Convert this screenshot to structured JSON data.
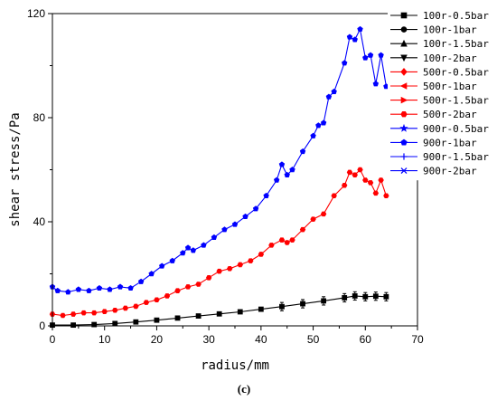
{
  "chart_data": {
    "type": "line",
    "xlabel": "radius/mm",
    "ylabel": "shear stress/Pa",
    "caption": "(c)",
    "xlim": [
      0,
      70
    ],
    "ylim": [
      0,
      120
    ],
    "xticks": [
      0,
      10,
      20,
      30,
      40,
      50,
      60,
      70
    ],
    "yticks": [
      0,
      40,
      80,
      120
    ],
    "legend_placement": "top-right",
    "series": [
      {
        "name": "100r-0.5bar",
        "color": "#000000",
        "marker": "square",
        "group": "g100"
      },
      {
        "name": "100r-1bar",
        "color": "#000000",
        "marker": "circle",
        "group": "g100"
      },
      {
        "name": "100r-1.5bar",
        "color": "#000000",
        "marker": "triangle-up",
        "group": "g100"
      },
      {
        "name": "100r-2bar",
        "color": "#000000",
        "marker": "triangle-down",
        "group": "g100"
      },
      {
        "name": "500r-0.5bar",
        "color": "#ff0000",
        "marker": "diamond",
        "group": "g500"
      },
      {
        "name": "500r-1bar",
        "color": "#ff0000",
        "marker": "triangle-left",
        "group": "g500"
      },
      {
        "name": "500r-1.5bar",
        "color": "#ff0000",
        "marker": "triangle-right",
        "group": "g500"
      },
      {
        "name": "500r-2bar",
        "color": "#ff0000",
        "marker": "hexagon",
        "group": "g500"
      },
      {
        "name": "900r-0.5bar",
        "color": "#0000ff",
        "marker": "star",
        "group": "g900"
      },
      {
        "name": "900r-1bar",
        "color": "#0000ff",
        "marker": "pentagon",
        "group": "g900"
      },
      {
        "name": "900r-1.5bar",
        "color": "#0000ff",
        "marker": "plus",
        "group": "g900"
      },
      {
        "name": "900r-2bar",
        "color": "#0000ff",
        "marker": "x",
        "group": "g900"
      }
    ],
    "curves": {
      "g100": [
        [
          0,
          0.3
        ],
        [
          4,
          0.3
        ],
        [
          8,
          0.5
        ],
        [
          12,
          0.9
        ],
        [
          16,
          1.5
        ],
        [
          20,
          2.2
        ],
        [
          24,
          3
        ],
        [
          28,
          3.8
        ],
        [
          32,
          4.6
        ],
        [
          36,
          5.4
        ],
        [
          40,
          6.4
        ],
        [
          44,
          7.4
        ],
        [
          48,
          8.5
        ],
        [
          52,
          9.6
        ],
        [
          56,
          10.8
        ],
        [
          58,
          11.5
        ],
        [
          60,
          11.2
        ],
        [
          62,
          11.4
        ],
        [
          64,
          11.2
        ]
      ],
      "g500": [
        [
          0,
          4.5
        ],
        [
          2,
          4
        ],
        [
          4,
          4.5
        ],
        [
          6,
          5
        ],
        [
          8,
          5
        ],
        [
          10,
          5.5
        ],
        [
          12,
          6
        ],
        [
          14,
          6.8
        ],
        [
          16,
          7.5
        ],
        [
          18,
          9
        ],
        [
          20,
          10
        ],
        [
          22,
          11.5
        ],
        [
          24,
          13.5
        ],
        [
          26,
          15
        ],
        [
          28,
          16
        ],
        [
          30,
          18.5
        ],
        [
          32,
          21
        ],
        [
          34,
          22
        ],
        [
          36,
          23.5
        ],
        [
          38,
          25
        ],
        [
          40,
          27.5
        ],
        [
          42,
          31
        ],
        [
          44,
          33
        ],
        [
          45,
          32
        ],
        [
          46,
          33
        ],
        [
          48,
          37
        ],
        [
          50,
          41
        ],
        [
          52,
          43
        ],
        [
          54,
          50
        ],
        [
          56,
          54
        ],
        [
          57,
          59
        ],
        [
          58,
          58
        ],
        [
          59,
          60
        ],
        [
          60,
          56
        ],
        [
          61,
          55
        ],
        [
          62,
          51
        ],
        [
          63,
          56
        ],
        [
          64,
          50
        ]
      ],
      "g900": [
        [
          0,
          15
        ],
        [
          1,
          13.5
        ],
        [
          3,
          13
        ],
        [
          5,
          14
        ],
        [
          7,
          13.5
        ],
        [
          9,
          14.5
        ],
        [
          11,
          14
        ],
        [
          13,
          15
        ],
        [
          15,
          14.5
        ],
        [
          17,
          17
        ],
        [
          19,
          20
        ],
        [
          21,
          23
        ],
        [
          23,
          25
        ],
        [
          25,
          28
        ],
        [
          26,
          30
        ],
        [
          27,
          29
        ],
        [
          29,
          31
        ],
        [
          31,
          34
        ],
        [
          33,
          37
        ],
        [
          35,
          39
        ],
        [
          37,
          42
        ],
        [
          39,
          45
        ],
        [
          41,
          50
        ],
        [
          43,
          56
        ],
        [
          44,
          62
        ],
        [
          45,
          58
        ],
        [
          46,
          60
        ],
        [
          48,
          67
        ],
        [
          50,
          73
        ],
        [
          51,
          77
        ],
        [
          52,
          78
        ],
        [
          53,
          88
        ],
        [
          54,
          90
        ],
        [
          56,
          101
        ],
        [
          57,
          111
        ],
        [
          58,
          110
        ],
        [
          59,
          114
        ],
        [
          60,
          103
        ],
        [
          61,
          104
        ],
        [
          62,
          93
        ],
        [
          63,
          104
        ],
        [
          64,
          92
        ]
      ]
    }
  }
}
